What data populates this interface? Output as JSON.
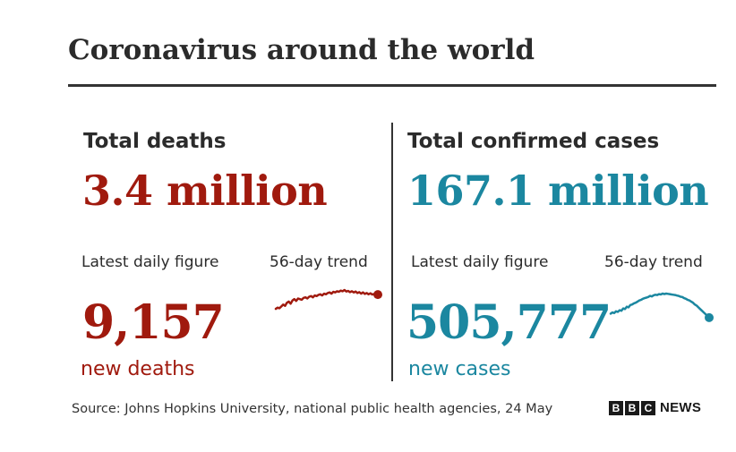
{
  "title": "Coronavirus around the world",
  "colors": {
    "deaths": "#a01a0e",
    "cases": "#1b87a0",
    "text": "#2b2b2b"
  },
  "deaths": {
    "label": "Total deaths",
    "total": "3.4 million",
    "daily_label": "Latest daily figure",
    "trend_label": "56-day trend",
    "daily_value": "9,157",
    "daily_unit": "new deaths"
  },
  "cases": {
    "label": "Total confirmed cases",
    "total": "167.1 million",
    "daily_label": "Latest daily figure",
    "trend_label": "56-day trend",
    "daily_value": "505,777",
    "daily_unit": "new cases"
  },
  "source": "Source: Johns Hopkins University, national public health agencies, 24 May",
  "logo": {
    "letters": [
      "B",
      "B",
      "C"
    ],
    "word": "NEWS"
  },
  "chart_data": [
    {
      "type": "line",
      "name": "deaths-trend",
      "x": [
        1,
        2,
        3,
        4,
        5,
        6,
        7,
        8,
        9,
        10,
        11,
        12,
        13,
        14,
        15,
        16,
        17,
        18,
        19,
        20,
        21,
        22,
        23,
        24,
        25,
        26,
        27,
        28,
        29,
        30,
        31,
        32,
        33,
        34,
        35,
        36,
        37,
        38,
        39,
        40,
        41,
        42,
        43,
        44,
        45,
        46,
        47,
        48,
        49,
        50,
        51,
        52,
        53,
        54,
        55,
        56
      ],
      "y": [
        0.38,
        0.42,
        0.4,
        0.46,
        0.52,
        0.48,
        0.58,
        0.62,
        0.55,
        0.66,
        0.7,
        0.64,
        0.72,
        0.7,
        0.68,
        0.74,
        0.76,
        0.72,
        0.78,
        0.8,
        0.76,
        0.82,
        0.8,
        0.84,
        0.86,
        0.82,
        0.88,
        0.86,
        0.9,
        0.92,
        0.88,
        0.94,
        0.92,
        0.96,
        0.94,
        0.98,
        0.96,
        1.0,
        0.95,
        0.97,
        0.93,
        0.96,
        0.92,
        0.95,
        0.9,
        0.93,
        0.88,
        0.92,
        0.87,
        0.9,
        0.86,
        0.89,
        0.85,
        0.87,
        0.84,
        0.85
      ],
      "ylim": [
        0,
        1
      ],
      "end_marker": true
    },
    {
      "type": "line",
      "name": "cases-trend",
      "x": [
        1,
        2,
        3,
        4,
        5,
        6,
        7,
        8,
        9,
        10,
        11,
        12,
        13,
        14,
        15,
        16,
        17,
        18,
        19,
        20,
        21,
        22,
        23,
        24,
        25,
        26,
        27,
        28,
        29,
        30,
        31,
        32,
        33,
        34,
        35,
        36,
        37,
        38,
        39,
        40,
        41,
        42,
        43,
        44,
        45,
        46,
        47,
        48,
        49,
        50,
        51,
        52,
        53,
        54,
        55,
        56
      ],
      "y": [
        0.3,
        0.34,
        0.32,
        0.38,
        0.36,
        0.42,
        0.4,
        0.48,
        0.46,
        0.54,
        0.52,
        0.6,
        0.62,
        0.66,
        0.68,
        0.72,
        0.76,
        0.78,
        0.82,
        0.84,
        0.86,
        0.88,
        0.92,
        0.9,
        0.94,
        0.96,
        0.95,
        0.98,
        0.97,
        1.0,
        0.98,
        1.0,
        0.99,
        0.98,
        0.97,
        0.96,
        0.95,
        0.93,
        0.92,
        0.89,
        0.88,
        0.84,
        0.82,
        0.78,
        0.76,
        0.72,
        0.68,
        0.62,
        0.58,
        0.52,
        0.46,
        0.4,
        0.34,
        0.28,
        0.22,
        0.16
      ],
      "ylim": [
        0,
        1
      ],
      "end_marker": true
    }
  ]
}
